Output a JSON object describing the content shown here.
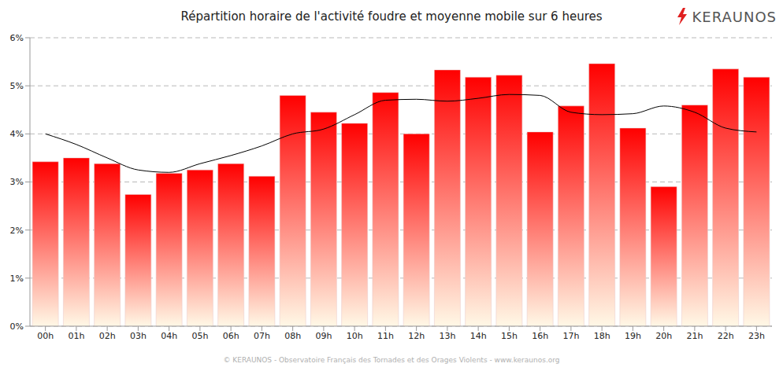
{
  "chart_data": {
    "type": "bar",
    "title": "Répartition horaire de l'activité foudre et moyenne mobile sur 6 heures",
    "annotations": [
      "KERAUNOS",
      "© KERAUNOS - Observatoire Français des Tornades et des Orages Violents - www.keraunos.org"
    ],
    "categories": [
      "00h",
      "01h",
      "02h",
      "03h",
      "04h",
      "05h",
      "06h",
      "07h",
      "08h",
      "09h",
      "10h",
      "11h",
      "12h",
      "13h",
      "14h",
      "15h",
      "16h",
      "17h",
      "18h",
      "19h",
      "20h",
      "21h",
      "22h",
      "23h"
    ],
    "series": [
      {
        "type": "bar",
        "color": "#ff0000",
        "values": [
          3.42,
          3.5,
          3.38,
          2.74,
          3.18,
          3.25,
          3.38,
          3.12,
          4.8,
          4.45,
          4.22,
          4.86,
          4.0,
          5.33,
          5.18,
          5.22,
          4.04,
          4.58,
          5.46,
          4.12,
          2.9,
          4.6,
          5.35,
          5.18
        ]
      },
      {
        "type": "line",
        "color": "#000000",
        "marker": "none",
        "values": [
          4.0,
          3.78,
          3.5,
          3.25,
          3.2,
          3.38,
          3.55,
          3.75,
          4.0,
          4.1,
          4.4,
          4.7,
          4.72,
          4.68,
          4.74,
          4.82,
          4.8,
          4.45,
          4.4,
          4.42,
          4.58,
          4.45,
          4.12,
          4.04
        ]
      }
    ],
    "ylim": [
      0,
      6
    ],
    "yticks": [
      {
        "value": 0,
        "label": "0%"
      },
      {
        "value": 1,
        "label": "1%"
      },
      {
        "value": 2,
        "label": "2%"
      },
      {
        "value": 3,
        "label": "3%"
      },
      {
        "value": 4,
        "label": "4%"
      },
      {
        "value": 5,
        "label": "5%"
      },
      {
        "value": 6,
        "label": "6%"
      }
    ],
    "grid": true
  }
}
